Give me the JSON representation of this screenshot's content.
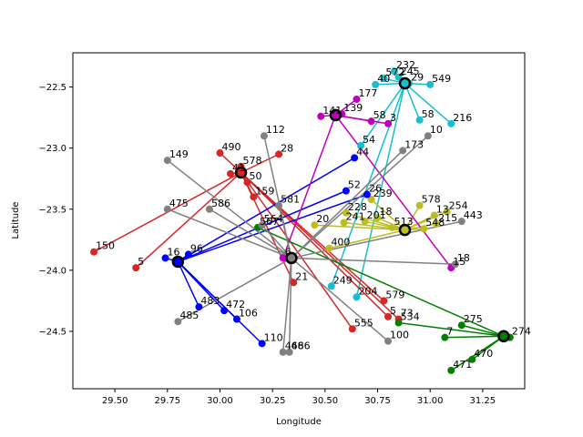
{
  "chart_data": {
    "type": "scatter",
    "title": "",
    "xlabel": "Longitude",
    "ylabel": "Latitude",
    "xlim": [
      29.3,
      31.45
    ],
    "ylim": [
      -24.97,
      -22.22
    ],
    "xticks": [
      29.5,
      29.75,
      30.0,
      30.25,
      30.5,
      30.75,
      31.0,
      31.25
    ],
    "yticks": [
      -22.5,
      -23.0,
      -23.5,
      -24.0,
      -24.5
    ],
    "xtick_labels": [
      "29.50",
      "29.75",
      "30.00",
      "30.25",
      "30.50",
      "30.75",
      "31.00",
      "31.25"
    ],
    "ytick_labels": [
      "−22.5",
      "−23.0",
      "−23.5",
      "−24.0",
      "−24.5"
    ],
    "grid": false,
    "series": [
      {
        "color": "#17becf",
        "hub": [
          30.88,
          -22.47
        ],
        "points": [
          {
            "x": 30.83,
            "y": -22.37,
            "label": "232"
          },
          {
            "x": 30.78,
            "y": -22.43,
            "label": "572"
          },
          {
            "x": 30.74,
            "y": -22.48,
            "label": "40"
          },
          {
            "x": 30.85,
            "y": -22.42,
            "label": "245"
          },
          {
            "x": 30.9,
            "y": -22.47,
            "label": "29"
          },
          {
            "x": 31.0,
            "y": -22.48,
            "label": "549"
          },
          {
            "x": 31.1,
            "y": -22.8,
            "label": "216"
          },
          {
            "x": 30.95,
            "y": -22.77,
            "label": "58"
          },
          {
            "x": 30.67,
            "y": -22.98,
            "label": "54"
          },
          {
            "x": 30.65,
            "y": -24.22,
            "label": "204"
          },
          {
            "x": 30.53,
            "y": -24.13,
            "label": "249"
          }
        ]
      },
      {
        "color": "#bcbd22",
        "hub": [
          30.88,
          -23.67
        ],
        "points": [
          {
            "x": 30.95,
            "y": -23.47,
            "label": "578"
          },
          {
            "x": 31.08,
            "y": -23.52,
            "label": "254"
          },
          {
            "x": 31.02,
            "y": -23.55,
            "label": "13"
          },
          {
            "x": 31.03,
            "y": -23.62,
            "label": "215"
          },
          {
            "x": 30.97,
            "y": -23.66,
            "label": "548"
          },
          {
            "x": 30.82,
            "y": -23.65,
            "label": "513"
          },
          {
            "x": 30.75,
            "y": -23.57,
            "label": "18"
          },
          {
            "x": 30.69,
            "y": -23.6,
            "label": "201"
          },
          {
            "x": 30.59,
            "y": -23.61,
            "label": "241"
          },
          {
            "x": 30.52,
            "y": -23.82,
            "label": "400"
          },
          {
            "x": 30.45,
            "y": -23.63,
            "label": "20"
          },
          {
            "x": 30.6,
            "y": -23.53,
            "label": "228"
          },
          {
            "x": 30.72,
            "y": -23.42,
            "label": "239"
          }
        ]
      },
      {
        "color": "#d62728",
        "hub": [
          30.1,
          -23.2
        ],
        "points": [
          {
            "x": 30.0,
            "y": -23.04,
            "label": "490"
          },
          {
            "x": 30.05,
            "y": -23.21,
            "label": "41"
          },
          {
            "x": 30.1,
            "y": -23.15,
            "label": "578"
          },
          {
            "x": 30.13,
            "y": -23.28,
            "label": "50"
          },
          {
            "x": 30.16,
            "y": -23.4,
            "label": "159"
          },
          {
            "x": 30.28,
            "y": -23.05,
            "label": "28"
          },
          {
            "x": 29.4,
            "y": -23.85,
            "label": "150"
          },
          {
            "x": 29.6,
            "y": -23.98,
            "label": "5"
          },
          {
            "x": 30.35,
            "y": -24.1,
            "label": "21"
          },
          {
            "x": 30.63,
            "y": -24.48,
            "label": "555"
          },
          {
            "x": 30.78,
            "y": -24.25,
            "label": "579"
          },
          {
            "x": 30.85,
            "y": -24.4,
            "label": "73"
          },
          {
            "x": 30.8,
            "y": -24.38,
            "label": "5"
          }
        ]
      },
      {
        "color": "#0000ff",
        "hub": [
          29.8,
          -23.93
        ],
        "points": [
          {
            "x": 29.74,
            "y": -23.9,
            "label": "16"
          },
          {
            "x": 29.85,
            "y": -23.87,
            "label": "96"
          },
          {
            "x": 29.9,
            "y": -24.3,
            "label": "483"
          },
          {
            "x": 30.02,
            "y": -24.33,
            "label": "472"
          },
          {
            "x": 30.08,
            "y": -24.4,
            "label": "106"
          },
          {
            "x": 30.2,
            "y": -24.6,
            "label": "110"
          },
          {
            "x": 30.6,
            "y": -23.35,
            "label": "52"
          },
          {
            "x": 30.7,
            "y": -23.38,
            "label": "26"
          },
          {
            "x": 30.64,
            "y": -23.08,
            "label": "44"
          }
        ]
      },
      {
        "color": "#bf00bf",
        "hub": [
          30.55,
          -22.73
        ],
        "points": [
          {
            "x": 30.65,
            "y": -22.6,
            "label": "177"
          },
          {
            "x": 30.58,
            "y": -22.72,
            "label": "139"
          },
          {
            "x": 30.48,
            "y": -22.74,
            "label": "141"
          },
          {
            "x": 30.72,
            "y": -22.78,
            "label": "58"
          },
          {
            "x": 30.8,
            "y": -22.8,
            "label": "3"
          },
          {
            "x": 31.1,
            "y": -23.98,
            "label": "15"
          },
          {
            "x": 30.3,
            "y": -23.9,
            "label": "6"
          }
        ]
      },
      {
        "color": "#008000",
        "hub": [
          31.35,
          -24.54
        ],
        "points": [
          {
            "x": 31.38,
            "y": -24.55,
            "label": "274"
          },
          {
            "x": 31.15,
            "y": -24.45,
            "label": "275"
          },
          {
            "x": 31.07,
            "y": -24.55,
            "label": "7"
          },
          {
            "x": 31.2,
            "y": -24.73,
            "label": "470"
          },
          {
            "x": 31.1,
            "y": -24.82,
            "label": "471"
          },
          {
            "x": 30.85,
            "y": -24.43,
            "label": "534"
          },
          {
            "x": 30.18,
            "y": -23.65,
            "label": "567"
          }
        ]
      },
      {
        "color": "#808080",
        "hub": [
          30.34,
          -23.9
        ],
        "points": [
          {
            "x": 30.21,
            "y": -22.9,
            "label": "112"
          },
          {
            "x": 29.75,
            "y": -23.1,
            "label": "149"
          },
          {
            "x": 29.75,
            "y": -23.5,
            "label": "475"
          },
          {
            "x": 29.95,
            "y": -23.5,
            "label": "586"
          },
          {
            "x": 30.2,
            "y": -23.63,
            "label": "564"
          },
          {
            "x": 30.28,
            "y": -23.47,
            "label": "581"
          },
          {
            "x": 29.8,
            "y": -24.42,
            "label": "485"
          },
          {
            "x": 30.3,
            "y": -24.67,
            "label": "468"
          },
          {
            "x": 30.33,
            "y": -24.67,
            "label": "466"
          },
          {
            "x": 30.8,
            "y": -24.58,
            "label": "100"
          },
          {
            "x": 31.15,
            "y": -23.6,
            "label": "443"
          },
          {
            "x": 31.12,
            "y": -23.95,
            "label": "18"
          },
          {
            "x": 30.99,
            "y": -22.9,
            "label": "10"
          },
          {
            "x": 30.87,
            "y": -23.02,
            "label": "173"
          }
        ]
      }
    ]
  }
}
